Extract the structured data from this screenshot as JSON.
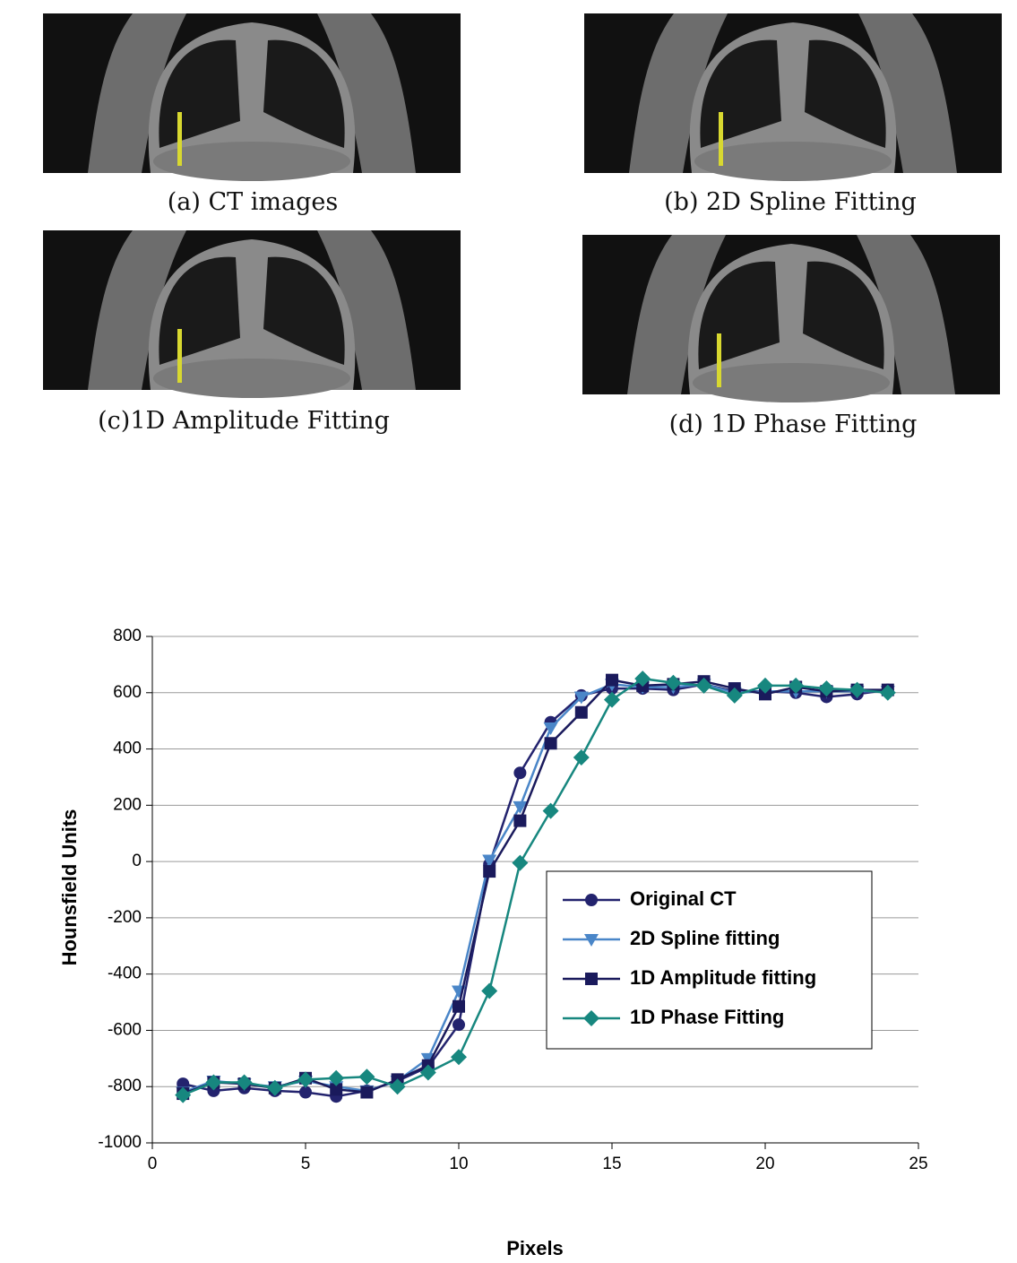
{
  "panels": [
    {
      "caption": "(a) CT images"
    },
    {
      "caption": "(b) 2D Spline Fitting"
    },
    {
      "caption": "(c)1D Amplitude Fitting"
    },
    {
      "caption": "(d) 1D Phase Fitting"
    }
  ],
  "chart_data": {
    "type": "line",
    "x_label": "Pixels",
    "y_label": "Hounsfield Units",
    "x": [
      1,
      2,
      3,
      4,
      5,
      6,
      7,
      8,
      9,
      10,
      11,
      12,
      13,
      14,
      15,
      16,
      17,
      18,
      19,
      20,
      21,
      22,
      23,
      24
    ],
    "series": [
      {
        "name": "Original CT",
        "color": "#23236e",
        "marker": "circle",
        "values": [
          -790,
          -815,
          -805,
          -815,
          -820,
          -835,
          -815,
          -780,
          -730,
          -580,
          -10,
          315,
          495,
          590,
          615,
          615,
          610,
          630,
          605,
          605,
          600,
          585,
          595,
          610
        ]
      },
      {
        "name": "2D Spline fitting",
        "color": "#4a86c8",
        "marker": "triangle-down",
        "values": [
          -820,
          -780,
          -790,
          -800,
          -780,
          -800,
          -815,
          -780,
          -700,
          -460,
          5,
          195,
          475,
          585,
          630,
          620,
          620,
          630,
          600,
          605,
          605,
          605,
          605,
          605
        ]
      },
      {
        "name": "1D Amplitude fitting",
        "color": "#1a1a5c",
        "marker": "square",
        "values": [
          -825,
          -785,
          -790,
          -805,
          -770,
          -810,
          -820,
          -775,
          -725,
          -515,
          -35,
          145,
          420,
          530,
          645,
          625,
          630,
          640,
          615,
          595,
          620,
          605,
          610,
          610
        ]
      },
      {
        "name": "1D Phase Fitting",
        "color": "#17877f",
        "marker": "diamond",
        "values": [
          -830,
          -785,
          -785,
          -805,
          -775,
          -770,
          -765,
          -800,
          -750,
          -695,
          -460,
          -5,
          180,
          370,
          575,
          650,
          635,
          625,
          590,
          625,
          625,
          615,
          610,
          600
        ]
      }
    ],
    "xlim": [
      0,
      25
    ],
    "xticks": [
      0,
      5,
      10,
      15,
      20,
      25
    ],
    "ylim": [
      -1000,
      800
    ],
    "yticks": [
      -1000,
      -800,
      -600,
      -400,
      -200,
      0,
      200,
      400,
      600,
      800
    ],
    "grid": true
  }
}
